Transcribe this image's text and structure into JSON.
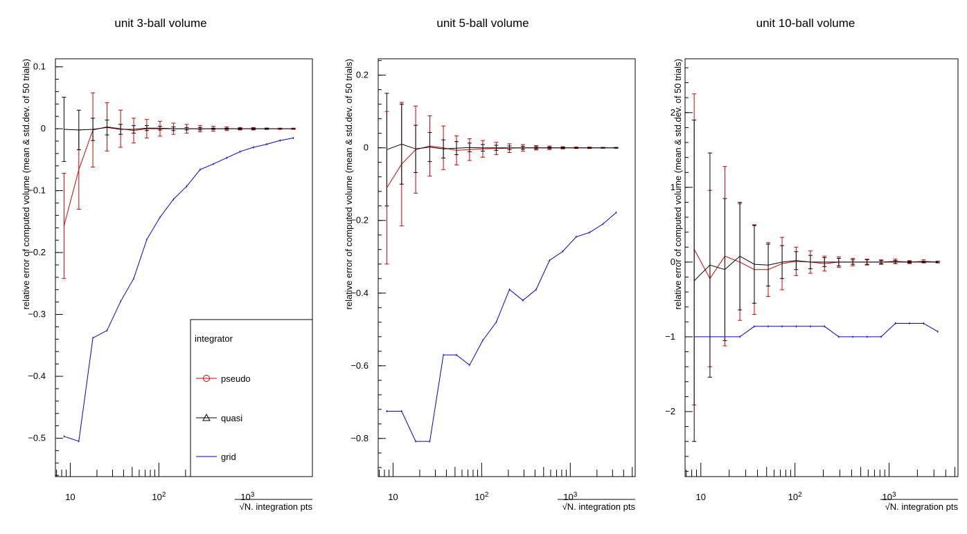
{
  "chart_data": [
    {
      "type": "line",
      "title": "unit 3-ball volume",
      "xlabel": "√N. integration pts",
      "ylabel": "relative error of computed volume (mean & std.dev. of 50 trials)",
      "xscale": "log",
      "xlim": [
        6.8,
        5400
      ],
      "ylim": [
        -0.562,
        0.113
      ],
      "xticks": [
        {
          "label": "10",
          "value": 10
        },
        {
          "label": "10²",
          "value": 100
        },
        {
          "label": "10³",
          "value": 1000
        }
      ],
      "yticks": [
        {
          "label": "0.1",
          "value": 0.1
        },
        {
          "label": "0",
          "value": 0
        },
        {
          "label": "−0.1",
          "value": -0.1
        },
        {
          "label": "−0.2",
          "value": -0.2
        },
        {
          "label": "−0.3",
          "value": -0.3
        },
        {
          "label": "−0.4",
          "value": -0.4
        },
        {
          "label": "−0.5",
          "value": -0.5
        }
      ],
      "legend": {
        "title": "integrator",
        "position": "bottom-right",
        "entries": [
          {
            "label": "pseudo",
            "color": "#d00000",
            "marker": "circle"
          },
          {
            "label": "quasi",
            "color": "#000000",
            "marker": "triangle"
          },
          {
            "label": "grid",
            "color": "#0000cc",
            "marker": "none"
          }
        ]
      },
      "x": [
        8.5,
        12.5,
        18,
        26,
        37,
        52,
        73,
        103,
        146,
        206,
        292,
        412,
        583,
        824,
        1166,
        1648,
        2331,
        3297
      ],
      "series": [
        {
          "name": "pseudo",
          "color": "#d00000",
          "values": [
            -0.157,
            -0.066,
            -0.002,
            0.003,
            0.0,
            -0.003,
            0.0,
            0.0,
            0.0,
            0.0,
            0.0,
            0.0,
            0.0,
            0.0,
            0.0,
            0.0,
            0.0,
            0.0
          ],
          "errors": [
            0.085,
            0.064,
            0.06,
            0.039,
            0.03,
            0.02,
            0.015,
            0.012,
            0.009,
            0.007,
            0.005,
            0.004,
            0.003,
            0.002,
            0.002,
            0.001,
            0.001,
            0.001
          ]
        },
        {
          "name": "quasi",
          "color": "#000000",
          "values": [
            -0.001,
            -0.002,
            -0.001,
            0.002,
            -0.001,
            -0.001,
            0.001,
            0.001,
            0.0,
            0.0,
            0.0,
            0.0,
            0.0,
            0.0,
            0.0,
            0.0,
            0.0,
            0.0
          ],
          "errors": [
            0.052,
            0.032,
            0.018,
            0.012,
            0.008,
            0.006,
            0.004,
            0.003,
            0.003,
            0.002,
            0.002,
            0.001,
            0.001,
            0.001,
            0.001,
            0.001,
            0.0,
            0.0
          ]
        },
        {
          "name": "grid",
          "color": "#0000cc",
          "values": [
            -0.497,
            -0.505,
            -0.338,
            -0.326,
            -0.279,
            -0.242,
            -0.179,
            -0.143,
            -0.114,
            -0.093,
            -0.066,
            -0.057,
            -0.047,
            -0.037,
            -0.03,
            -0.025,
            -0.019,
            -0.015
          ]
        }
      ]
    },
    {
      "type": "line",
      "title": "unit 5-ball volume",
      "xlabel": "√N. integration pts",
      "ylabel": "relative error of computed volume (mean & std.dev. of 50 trials)",
      "xscale": "log",
      "xlim": [
        6.8,
        5400
      ],
      "ylim": [
        -0.905,
        0.245
      ],
      "xticks": [
        {
          "label": "10",
          "value": 10
        },
        {
          "label": "10²",
          "value": 100
        },
        {
          "label": "10³",
          "value": 1000
        }
      ],
      "yticks": [
        {
          "label": "0.2",
          "value": 0.2
        },
        {
          "label": "0",
          "value": 0
        },
        {
          "label": "−0.2",
          "value": -0.2
        },
        {
          "label": "−0.4",
          "value": -0.4
        },
        {
          "label": "−0.6",
          "value": -0.6
        },
        {
          "label": "−0.8",
          "value": -0.8
        }
      ],
      "x": [
        8.5,
        12.5,
        18,
        26,
        37,
        52,
        73,
        103,
        146,
        206,
        292,
        412,
        583,
        824,
        1166,
        1648,
        2331,
        3297
      ],
      "series": [
        {
          "name": "pseudo",
          "color": "#d00000",
          "values": [
            -0.11,
            -0.045,
            -0.005,
            0.005,
            0.0,
            -0.007,
            -0.005,
            -0.003,
            -0.002,
            -0.001,
            0.0,
            0.0,
            0.0,
            0.0,
            0.0,
            0.0,
            0.0,
            0.0
          ],
          "errors": [
            0.21,
            0.17,
            0.12,
            0.083,
            0.06,
            0.04,
            0.03,
            0.023,
            0.017,
            0.012,
            0.009,
            0.006,
            0.005,
            0.003,
            0.002,
            0.002,
            0.001,
            0.001
          ]
        },
        {
          "name": "quasi",
          "color": "#000000",
          "values": [
            -0.005,
            0.01,
            -0.003,
            0.002,
            -0.003,
            -0.001,
            0.001,
            0.0,
            0.0,
            0.0,
            0.0,
            0.0,
            0.0,
            0.0,
            0.0,
            0.0,
            0.0,
            0.0
          ],
          "errors": [
            0.155,
            0.11,
            0.065,
            0.04,
            0.025,
            0.018,
            0.012,
            0.009,
            0.007,
            0.005,
            0.004,
            0.003,
            0.002,
            0.002,
            0.001,
            0.001,
            0.001,
            0.001
          ]
        },
        {
          "name": "grid",
          "color": "#0000cc",
          "values": [
            -0.725,
            -0.725,
            -0.808,
            -0.808,
            -0.57,
            -0.57,
            -0.598,
            -0.53,
            -0.48,
            -0.39,
            -0.42,
            -0.39,
            -0.31,
            -0.285,
            -0.245,
            -0.233,
            -0.21,
            -0.178
          ]
        }
      ]
    },
    {
      "type": "line",
      "title": "unit 10-ball volume",
      "xlabel": "√N. integration pts",
      "ylabel": "relative error of computed volume (mean & std.dev. of 50 trials)",
      "xscale": "log",
      "xlim": [
        6.8,
        5400
      ],
      "ylim": [
        -2.87,
        2.72
      ],
      "xticks": [
        {
          "label": "10",
          "value": 10
        },
        {
          "label": "10²",
          "value": 100
        },
        {
          "label": "10³",
          "value": 1000
        }
      ],
      "yticks": [
        {
          "label": "2",
          "value": 2
        },
        {
          "label": "1",
          "value": 1
        },
        {
          "label": "0",
          "value": 0
        },
        {
          "label": "−1",
          "value": -1
        },
        {
          "label": "−2",
          "value": -2
        }
      ],
      "x": [
        8.5,
        12.5,
        18,
        26,
        37,
        52,
        73,
        103,
        146,
        206,
        292,
        412,
        583,
        824,
        1166,
        1648,
        2331,
        3297
      ],
      "series": [
        {
          "name": "pseudo",
          "color": "#d00000",
          "values": [
            0.17,
            -0.22,
            0.08,
            0.0,
            -0.1,
            -0.1,
            -0.02,
            0.01,
            0.0,
            -0.02,
            0.0,
            0.0,
            0.0,
            0.0,
            0.01,
            0.0,
            0.01,
            0.0
          ],
          "errors": [
            2.08,
            1.18,
            1.2,
            0.78,
            0.6,
            0.36,
            0.35,
            0.19,
            0.15,
            0.1,
            0.07,
            0.05,
            0.04,
            0.03,
            0.03,
            0.02,
            0.02,
            0.01
          ]
        },
        {
          "name": "quasi",
          "color": "#000000",
          "values": [
            -0.25,
            -0.04,
            -0.1,
            0.08,
            -0.03,
            -0.04,
            0.0,
            0.02,
            0.0,
            0.0,
            0.0,
            0.0,
            0.0,
            0.0,
            0.0,
            0.0,
            0.0,
            0.0
          ],
          "errors": [
            2.15,
            1.5,
            0.95,
            0.72,
            0.52,
            0.28,
            0.22,
            0.12,
            0.09,
            0.06,
            0.05,
            0.03,
            0.03,
            0.02,
            0.02,
            0.01,
            0.01,
            0.01
          ]
        },
        {
          "name": "grid",
          "color": "#0000cc",
          "values": [
            -1.0,
            -1.0,
            -1.0,
            -1.0,
            -0.86,
            -0.86,
            -0.86,
            -0.86,
            -0.86,
            -0.86,
            -1.0,
            -1.0,
            -1.0,
            -1.0,
            -0.82,
            -0.82,
            -0.82,
            -0.93
          ]
        }
      ]
    }
  ]
}
